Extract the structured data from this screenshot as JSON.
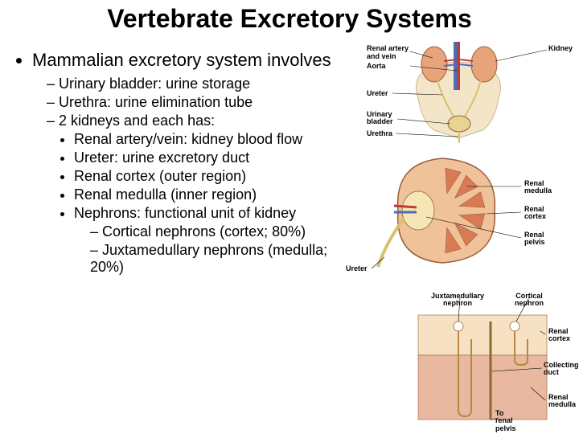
{
  "title": {
    "text": "Vertebrate Excretory Systems",
    "fontsize": 32,
    "color": "#000000"
  },
  "body": {
    "fontsize_l1": 22,
    "fontsize_l2": 18,
    "fontsize_l3": 18,
    "fontsize_l4": 18,
    "l1": "Mammalian excretory system involves",
    "l2_a": "Urinary bladder: urine storage",
    "l2_b": "Urethra: urine elimination tube",
    "l2_c": "2 kidneys and each has:",
    "l3_a": "Renal artery/vein: kidney blood flow",
    "l3_b": "Ureter: urine excretory duct",
    "l3_c": "Renal cortex (outer region)",
    "l3_d": "Renal medulla (inner region)",
    "l3_e": "Nephrons: functional unit of kidney",
    "l4_a": "Cortical nephrons (cortex; 80%)",
    "l4_b": "Juxtamedullary nephrons (medulla; 20%)"
  },
  "diagram": {
    "label_fontsize": 9,
    "upper": {
      "renal_av_1": "Renal artery",
      "renal_av_2": "and vein",
      "aorta": "Aorta",
      "kidney": "Kidney",
      "ureter": "Ureter",
      "urinary_bladder": "Urinary\nbladder",
      "urethra": "Urethra"
    },
    "kidney": {
      "renal_medulla": "Renal\nmedulla",
      "renal_cortex": "Renal\ncortex",
      "renal_pelvis": "Renal\npelvis",
      "ureter": "Ureter"
    },
    "lower": {
      "jux_nephron": "Juxtamedullary\nnephron",
      "cortical_nephron": "Cortical\nnephron",
      "renal_cortex": "Renal\ncortex",
      "collecting_duct": "Collecting\nduct",
      "renal_medulla": "Renal\nmedulla",
      "to_renal_pelvis": "To\nrenal\npelvis"
    },
    "colors": {
      "bone": "#f3e6c8",
      "bone_stroke": "#c9b890",
      "kidney_fill": "#e7a37a",
      "kidney_stroke": "#9b5d3a",
      "medulla": "#d87b55",
      "cortex": "#efc29a",
      "pelvis": "#f6e6b6",
      "vein": "#4a6fb8",
      "artery": "#c03a3a",
      "ureter_tube": "#d9c06a",
      "line": "#000000",
      "tissue_bg": "#f6e2c2",
      "tissue_pink": "#e9b8a0"
    }
  }
}
